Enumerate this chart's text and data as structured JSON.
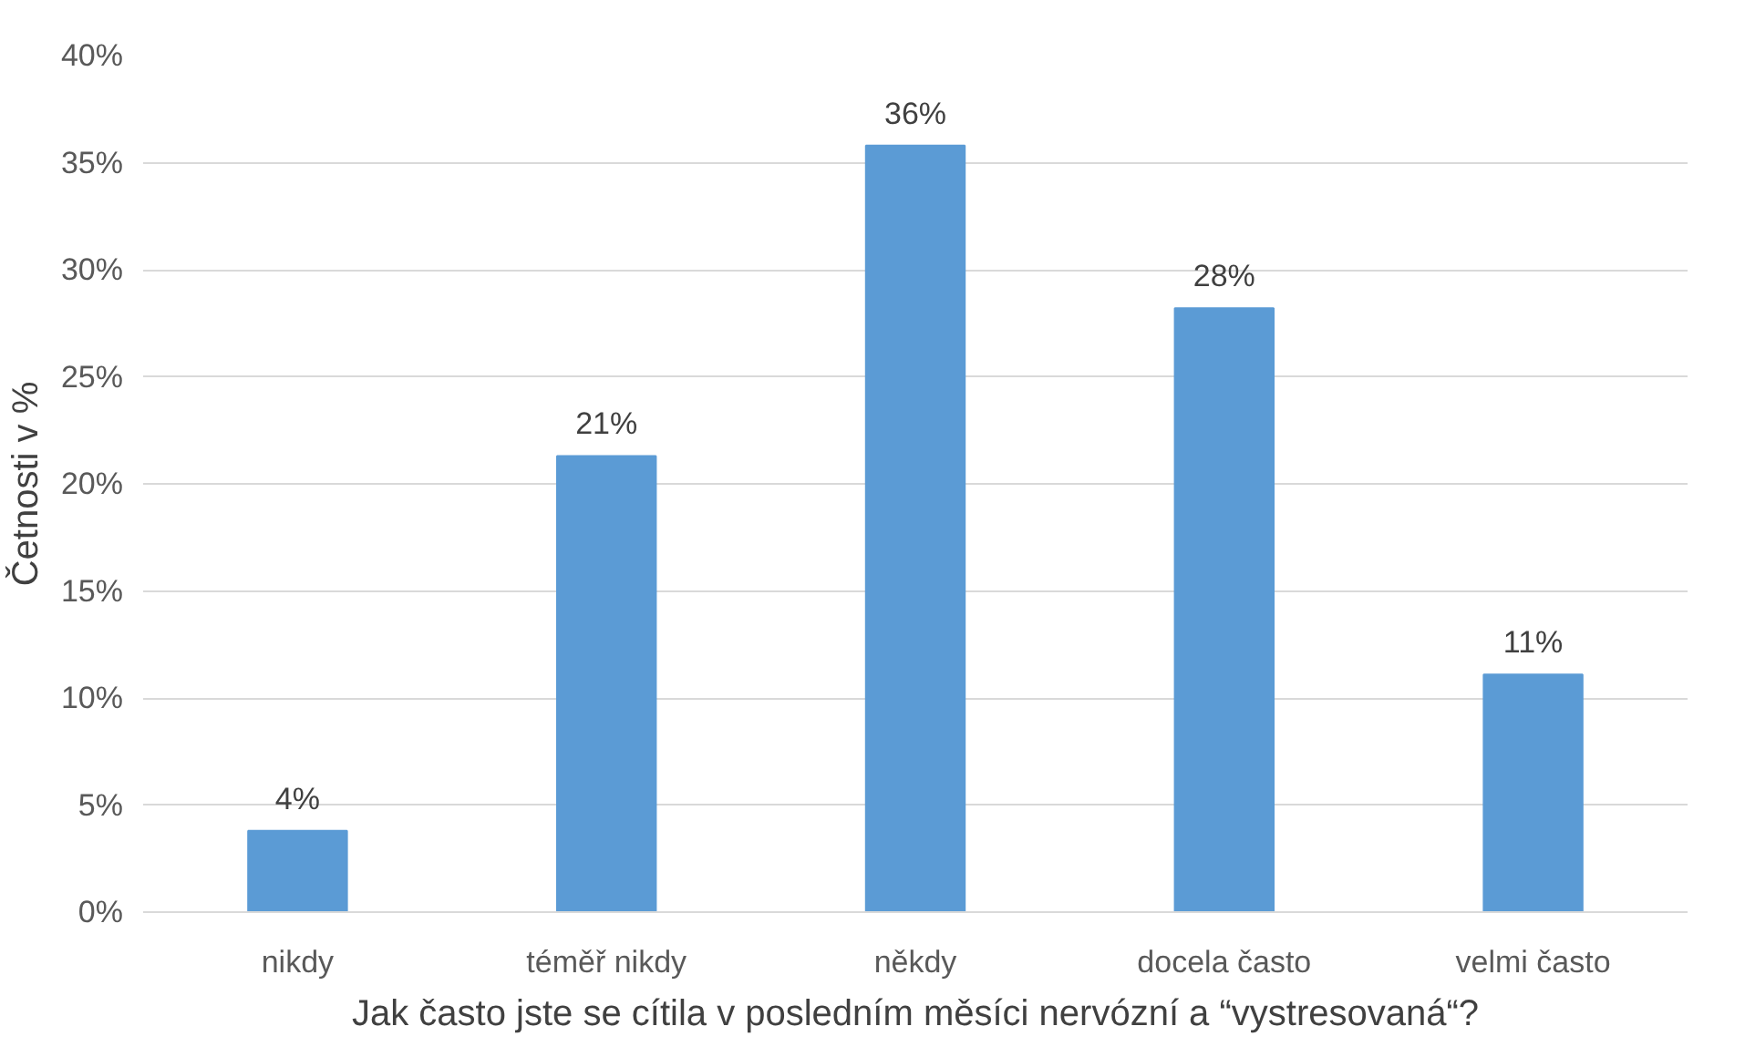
{
  "chart_data": {
    "type": "bar",
    "categories": [
      "nikdy",
      "téměř nikdy",
      "někdy",
      "docela často",
      "velmi často"
    ],
    "values": [
      3.8,
      21.3,
      35.8,
      28.2,
      11.1
    ],
    "value_labels": [
      "4%",
      "21%",
      "36%",
      "28%",
      "11%"
    ],
    "color": "#5b9bd5",
    "xlabel": "Jak často jste se cítila v posledním měsíci nervózní a “vystresovaná“?",
    "ylabel": "Četnosti v %",
    "ylim": [
      0,
      40
    ],
    "yticks": [
      {
        "value": 0,
        "label": "0%"
      },
      {
        "value": 5,
        "label": "5%"
      },
      {
        "value": 10,
        "label": "10%"
      },
      {
        "value": 15,
        "label": "15%"
      },
      {
        "value": 20,
        "label": "20%"
      },
      {
        "value": 25,
        "label": "25%"
      },
      {
        "value": 30,
        "label": "30%"
      },
      {
        "value": 35,
        "label": "35%"
      },
      {
        "value": 40,
        "label": "40%"
      }
    ],
    "grid": "y"
  }
}
